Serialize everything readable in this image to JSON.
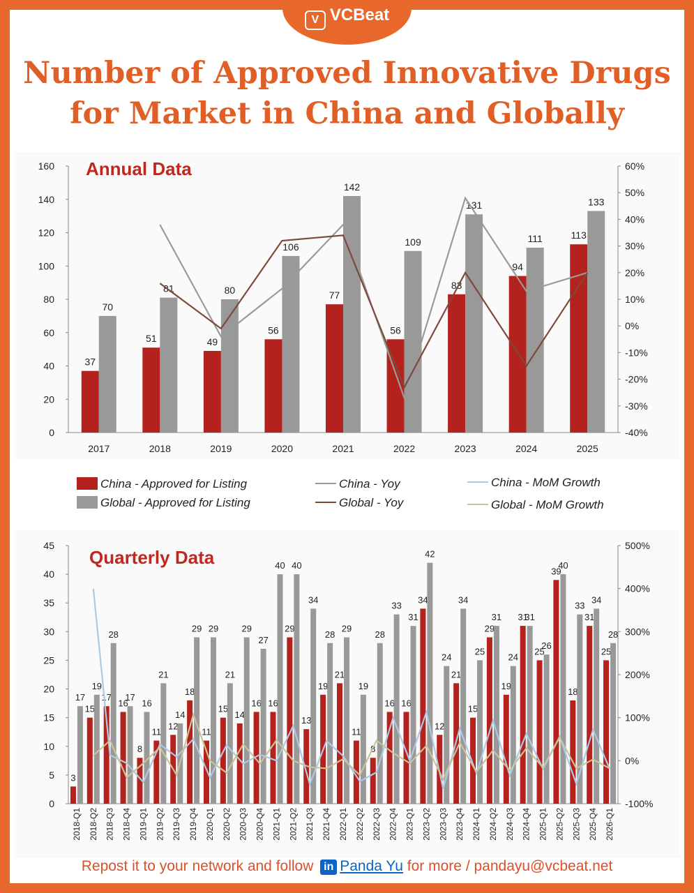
{
  "brand": {
    "name": "VCBeat"
  },
  "title": {
    "line1": "Number of Approved Innovative Drugs",
    "line2": "for Market in China and Globally"
  },
  "colors": {
    "accent": "#e8672a",
    "china_bar": "#b3221c",
    "global_bar": "#999999",
    "china_yoy": "#9a9a9a",
    "global_yoy": "#7b4a3c",
    "china_mom": "#aec8e6",
    "global_mom": "#c8c49a"
  },
  "legend": {
    "china_bar": "China - Approved for Listing",
    "global_bar": "Global - Approved for Listing",
    "china_yoy": "China - Yoy",
    "global_yoy": "Global - Yoy",
    "china_mom": "China - MoM Growth",
    "global_mom": "Global - MoM Growth"
  },
  "footer": {
    "text_before": "Repost it to your network and follow",
    "linkedin_icon": "in",
    "author": "Panda Yu",
    "text_after": "for more / pandayu@vcbeat.net"
  },
  "chart_data": [
    {
      "type": "bar",
      "title": "Annual Data",
      "categories": [
        "2017",
        "2018",
        "2019",
        "2020",
        "2021",
        "2022",
        "2023",
        "2024",
        "2025"
      ],
      "ylim": [
        0,
        160
      ],
      "y2lim": [
        -40,
        60
      ],
      "y_ticks": [
        0,
        20,
        40,
        60,
        80,
        100,
        120,
        140,
        160
      ],
      "y2_ticks": [
        "-40%",
        "-30%",
        "-20%",
        "-10%",
        "0%",
        "10%",
        "20%",
        "30%",
        "40%",
        "50%",
        "60%"
      ],
      "series": [
        {
          "name": "China - Approved for Listing",
          "kind": "bar",
          "values": [
            37,
            51,
            49,
            56,
            77,
            56,
            83,
            94,
            113
          ]
        },
        {
          "name": "Global - Approved for Listing",
          "kind": "bar",
          "values": [
            70,
            81,
            80,
            106,
            142,
            109,
            131,
            111,
            133
          ]
        },
        {
          "name": "China - Yoy",
          "kind": "line",
          "axis": "right",
          "values": [
            null,
            38,
            -4,
            14,
            38,
            -27,
            48,
            13,
            20
          ]
        },
        {
          "name": "Global - Yoy",
          "kind": "line",
          "axis": "right",
          "values": [
            null,
            16,
            -1,
            32,
            34,
            -23,
            20,
            -15,
            20
          ]
        }
      ]
    },
    {
      "type": "bar",
      "title": "Quarterly Data",
      "categories": [
        "2018-Q1",
        "2018-Q2",
        "2018-Q3",
        "2018-Q4",
        "2019-Q1",
        "2019-Q2",
        "2019-Q3",
        "2019-Q4",
        "2020-Q1",
        "2020-Q2",
        "2020-Q3",
        "2020-Q4",
        "2021-Q1",
        "2021-Q2",
        "2021-Q3",
        "2021-Q4",
        "2022-Q1",
        "2022-Q2",
        "2022-Q3",
        "2022-Q4",
        "2023-Q1",
        "2023-Q2",
        "2023-Q3",
        "2023-Q4",
        "2024-Q1",
        "2024-Q2",
        "2024-Q3",
        "2024-Q4",
        "2025-Q1",
        "2025-Q2",
        "2025-Q3",
        "2025-Q4",
        "2026-Q1"
      ],
      "ylim": [
        0,
        45
      ],
      "y2lim": [
        -100,
        500
      ],
      "y_ticks": [
        0,
        5,
        10,
        15,
        20,
        25,
        30,
        35,
        40,
        45
      ],
      "y2_ticks": [
        "-100%",
        "0%",
        "100%",
        "200%",
        "300%",
        "400%",
        "500%"
      ],
      "series": [
        {
          "name": "China - Approved for Listing",
          "kind": "bar",
          "values": [
            3,
            15,
            17,
            16,
            8,
            11,
            12,
            18,
            11,
            15,
            14,
            16,
            16,
            29,
            13,
            19,
            21,
            11,
            8,
            16,
            16,
            34,
            12,
            21,
            15,
            29,
            19,
            31,
            25,
            39,
            18,
            31,
            25
          ]
        },
        {
          "name": "Global - Approved for Listing",
          "kind": "bar",
          "values": [
            17,
            19,
            28,
            17,
            16,
            21,
            14,
            29,
            29,
            21,
            29,
            27,
            40,
            40,
            34,
            28,
            29,
            19,
            28,
            33,
            31,
            42,
            24,
            34,
            25,
            31,
            24,
            31,
            26,
            40,
            33,
            34,
            28
          ]
        },
        {
          "name": "China - MoM Growth",
          "kind": "line",
          "axis": "right",
          "values": [
            null,
            400,
            13,
            -6,
            -50,
            38,
            9,
            50,
            -39,
            36,
            -7,
            14,
            0,
            81,
            -55,
            46,
            11,
            -48,
            -27,
            100,
            0,
            113,
            -65,
            75,
            -29,
            93,
            -34,
            63,
            -19,
            56,
            -54,
            72,
            -19
          ]
        },
        {
          "name": "Global - MoM Growth",
          "kind": "line",
          "axis": "right",
          "values": [
            null,
            12,
            47,
            -39,
            -6,
            31,
            -33,
            107,
            0,
            -28,
            38,
            -7,
            48,
            0,
            -15,
            -18,
            4,
            -34,
            47,
            18,
            -6,
            35,
            -43,
            42,
            -26,
            24,
            -23,
            29,
            -16,
            54,
            -18,
            3,
            -18
          ]
        }
      ]
    }
  ]
}
